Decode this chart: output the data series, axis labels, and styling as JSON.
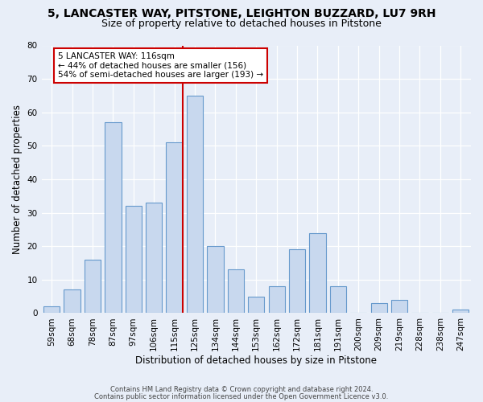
{
  "title_line1": "5, LANCASTER WAY, PITSTONE, LEIGHTON BUZZARD, LU7 9RH",
  "title_line2": "Size of property relative to detached houses in Pitstone",
  "xlabel": "Distribution of detached houses by size in Pitstone",
  "ylabel": "Number of detached properties",
  "footnote1": "Contains HM Land Registry data © Crown copyright and database right 2024.",
  "footnote2": "Contains public sector information licensed under the Open Government Licence v3.0.",
  "bin_labels": [
    "59sqm",
    "68sqm",
    "78sqm",
    "87sqm",
    "97sqm",
    "106sqm",
    "115sqm",
    "125sqm",
    "134sqm",
    "144sqm",
    "153sqm",
    "162sqm",
    "172sqm",
    "181sqm",
    "191sqm",
    "200sqm",
    "209sqm",
    "219sqm",
    "228sqm",
    "238sqm",
    "247sqm"
  ],
  "bar_values": [
    2,
    7,
    16,
    57,
    32,
    33,
    51,
    65,
    20,
    13,
    5,
    8,
    19,
    24,
    8,
    0,
    3,
    4,
    0,
    0,
    1
  ],
  "bar_color": "#c8d8ee",
  "bar_edge_color": "#6699cc",
  "ylim": [
    0,
    80
  ],
  "yticks": [
    0,
    10,
    20,
    30,
    40,
    50,
    60,
    70,
    80
  ],
  "vline_color": "#cc0000",
  "vline_x_index": 6,
  "annotation_text": "5 LANCASTER WAY: 116sqm\n← 44% of detached houses are smaller (156)\n54% of semi-detached houses are larger (193) →",
  "annotation_box_color": "#ffffff",
  "annotation_box_edge": "#cc0000",
  "background_color": "#e8eef8",
  "grid_color": "#ffffff",
  "title_fontsize": 10,
  "subtitle_fontsize": 9,
  "axis_label_fontsize": 8.5,
  "tick_fontsize": 7.5,
  "annotation_fontsize": 7.5,
  "bar_width": 0.8
}
